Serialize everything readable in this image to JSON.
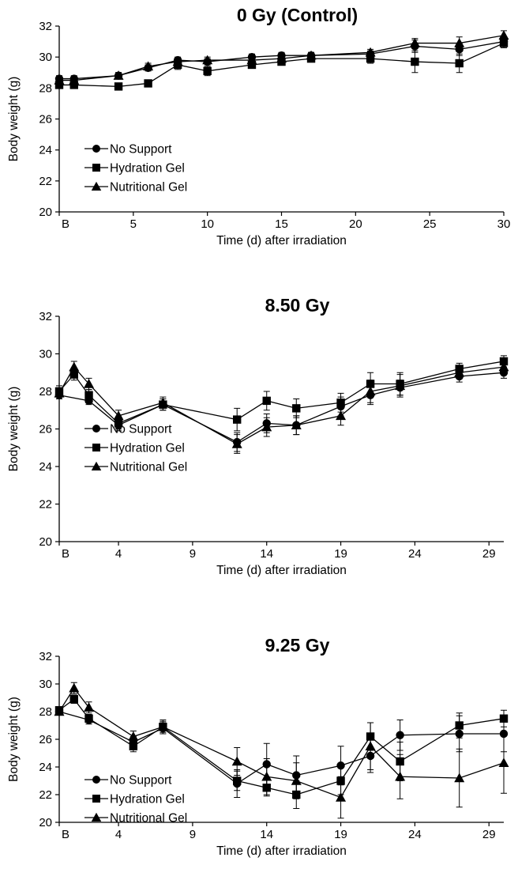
{
  "chart_data": [
    {
      "type": "line",
      "title": "0 Gy (Control)",
      "xlabel": "Time (d) after irradiation",
      "ylabel": "Body weight (g)",
      "ylim": [
        20,
        32
      ],
      "yticks": [
        20,
        22,
        24,
        26,
        28,
        30,
        32
      ],
      "xlim": [
        0,
        30
      ],
      "xticks": [
        {
          "x": 0,
          "label": "B"
        },
        {
          "x": 5,
          "label": "5"
        },
        {
          "x": 10,
          "label": "10"
        },
        {
          "x": 15,
          "label": "15"
        },
        {
          "x": 20,
          "label": "20"
        },
        {
          "x": 25,
          "label": "25"
        },
        {
          "x": 30,
          "label": "30"
        }
      ],
      "legend": {
        "position": "lower-left",
        "entries": [
          "No Support",
          "Hydration Gel",
          "Nutritional Gel"
        ]
      },
      "series": [
        {
          "name": "No Support",
          "marker": "circle",
          "x": [
            0,
            1,
            4,
            6,
            8,
            10,
            13,
            15,
            17,
            21,
            24,
            27,
            30
          ],
          "y": [
            28.6,
            28.6,
            28.8,
            29.3,
            29.8,
            29.7,
            30.0,
            30.1,
            30.1,
            30.2,
            30.7,
            30.5,
            31.0
          ],
          "err": [
            0.2,
            0.2,
            0.2,
            0.2,
            0.2,
            0.2,
            0.2,
            0.2,
            0.2,
            0.2,
            0.4,
            0.4,
            0.3
          ]
        },
        {
          "name": "Hydration Gel",
          "marker": "square",
          "x": [
            0,
            1,
            4,
            6,
            8,
            10,
            13,
            15,
            17,
            21,
            24,
            27,
            30
          ],
          "y": [
            28.2,
            28.2,
            28.1,
            28.3,
            29.5,
            29.1,
            29.5,
            29.7,
            29.9,
            29.9,
            29.7,
            29.6,
            30.9
          ],
          "err": [
            0.2,
            0.2,
            0.2,
            0.2,
            0.3,
            0.3,
            0.2,
            0.2,
            0.2,
            0.3,
            0.7,
            0.6,
            0.3
          ]
        },
        {
          "name": "Nutritional Gel",
          "marker": "triangle",
          "x": [
            0,
            1,
            4,
            6,
            8,
            10,
            13,
            15,
            17,
            21,
            24,
            27,
            30
          ],
          "y": [
            28.5,
            28.5,
            28.8,
            29.4,
            29.7,
            29.8,
            29.8,
            29.9,
            30.1,
            30.3,
            30.9,
            30.9,
            31.4
          ],
          "err": [
            0.2,
            0.2,
            0.2,
            0.2,
            0.2,
            0.2,
            0.2,
            0.2,
            0.2,
            0.2,
            0.3,
            0.4,
            0.3
          ]
        }
      ]
    },
    {
      "type": "line",
      "title": "8.50 Gy",
      "xlabel": "Time (d) after irradiation",
      "ylabel": "Body weight (g)",
      "ylim": [
        20,
        32
      ],
      "yticks": [
        20,
        22,
        24,
        26,
        28,
        30,
        32
      ],
      "xlim": [
        0,
        30
      ],
      "xticks": [
        {
          "x": 0,
          "label": "B"
        },
        {
          "x": 4,
          "label": "4"
        },
        {
          "x": 9,
          "label": "9"
        },
        {
          "x": 14,
          "label": "14"
        },
        {
          "x": 19,
          "label": "19"
        },
        {
          "x": 24,
          "label": "24"
        },
        {
          "x": 29,
          "label": "29"
        }
      ],
      "legend": {
        "position": "lower-left",
        "entries": [
          "No Support",
          "Hydration Gel",
          "Nutritional Gel"
        ]
      },
      "series": [
        {
          "name": "No Support",
          "marker": "circle",
          "x": [
            0,
            2,
            4,
            7,
            12,
            14,
            16,
            19,
            21,
            23,
            27,
            30
          ],
          "y": [
            27.8,
            27.5,
            26.2,
            27.3,
            25.3,
            26.3,
            26.2,
            27.2,
            27.8,
            28.2,
            28.8,
            29.0
          ],
          "err": [
            0.2,
            0.2,
            0.3,
            0.3,
            0.5,
            0.5,
            0.5,
            0.5,
            0.5,
            0.4,
            0.3,
            0.3
          ]
        },
        {
          "name": "Hydration Gel",
          "marker": "square",
          "x": [
            0,
            1,
            2,
            4,
            7,
            12,
            14,
            16,
            19,
            21,
            23,
            27,
            30
          ],
          "y": [
            28.0,
            28.9,
            27.8,
            26.3,
            27.3,
            26.5,
            27.5,
            27.1,
            27.4,
            28.4,
            28.4,
            29.2,
            29.6
          ],
          "err": [
            0.3,
            0.3,
            0.3,
            0.3,
            0.3,
            0.6,
            0.5,
            0.5,
            0.5,
            0.6,
            0.6,
            0.3,
            0.3
          ]
        },
        {
          "name": "Nutritional Gel",
          "marker": "triangle",
          "x": [
            0,
            1,
            2,
            4,
            7,
            12,
            14,
            16,
            19,
            21,
            23,
            27,
            30
          ],
          "y": [
            27.9,
            29.3,
            28.4,
            26.7,
            27.4,
            25.2,
            26.1,
            26.2,
            26.7,
            28.0,
            28.3,
            29.0,
            29.3
          ],
          "err": [
            0.3,
            0.3,
            0.3,
            0.3,
            0.3,
            0.5,
            0.5,
            0.5,
            0.5,
            0.6,
            0.6,
            0.3,
            0.3
          ]
        }
      ]
    },
    {
      "type": "line",
      "title": "9.25 Gy",
      "xlabel": "Time (d) after irradiation",
      "ylabel": "Body weight (g)",
      "ylim": [
        20,
        32
      ],
      "yticks": [
        20,
        22,
        24,
        26,
        28,
        30,
        32
      ],
      "xlim": [
        0,
        30
      ],
      "xticks": [
        {
          "x": 0,
          "label": "B"
        },
        {
          "x": 4,
          "label": "4"
        },
        {
          "x": 9,
          "label": "9"
        },
        {
          "x": 14,
          "label": "14"
        },
        {
          "x": 19,
          "label": "19"
        },
        {
          "x": 24,
          "label": "24"
        },
        {
          "x": 29,
          "label": "29"
        }
      ],
      "legend": {
        "position": "lower-left",
        "entries": [
          "No Support",
          "Hydration Gel",
          "Nutritional Gel"
        ]
      },
      "series": [
        {
          "name": "No Support",
          "marker": "circle",
          "x": [
            0,
            2,
            5,
            7,
            12,
            14,
            16,
            19,
            21,
            23,
            27,
            30
          ],
          "y": [
            28.0,
            27.4,
            25.8,
            26.8,
            22.8,
            24.2,
            23.4,
            24.1,
            24.8,
            26.3,
            26.4,
            26.4
          ],
          "err": [
            0.2,
            0.3,
            0.4,
            0.4,
            1.0,
            1.5,
            1.4,
            1.4,
            1.2,
            1.1,
            1.3,
            1.3
          ]
        },
        {
          "name": "Hydration Gel",
          "marker": "square",
          "x": [
            0,
            1,
            2,
            5,
            7,
            12,
            14,
            16,
            19,
            21,
            23,
            27,
            30
          ],
          "y": [
            28.1,
            28.9,
            27.5,
            25.5,
            26.9,
            23.0,
            22.5,
            22.0,
            23.0,
            26.2,
            24.4,
            27.0,
            27.5
          ],
          "err": [
            0.2,
            0.3,
            0.3,
            0.4,
            0.4,
            0.7,
            0.6,
            1.0,
            1.0,
            1.0,
            1.4,
            0.9,
            0.6
          ]
        },
        {
          "name": "Nutritional Gel",
          "marker": "triangle",
          "x": [
            0,
            1,
            2,
            5,
            7,
            12,
            14,
            16,
            19,
            21,
            23,
            27,
            30
          ],
          "y": [
            28.0,
            29.7,
            28.3,
            26.2,
            26.9,
            24.4,
            23.3,
            23.0,
            21.8,
            25.5,
            23.3,
            23.2,
            24.3
          ],
          "err": [
            0.2,
            0.4,
            0.4,
            0.4,
            0.5,
            1.0,
            1.3,
            1.3,
            1.5,
            1.7,
            1.6,
            2.1,
            2.2
          ]
        }
      ]
    }
  ]
}
